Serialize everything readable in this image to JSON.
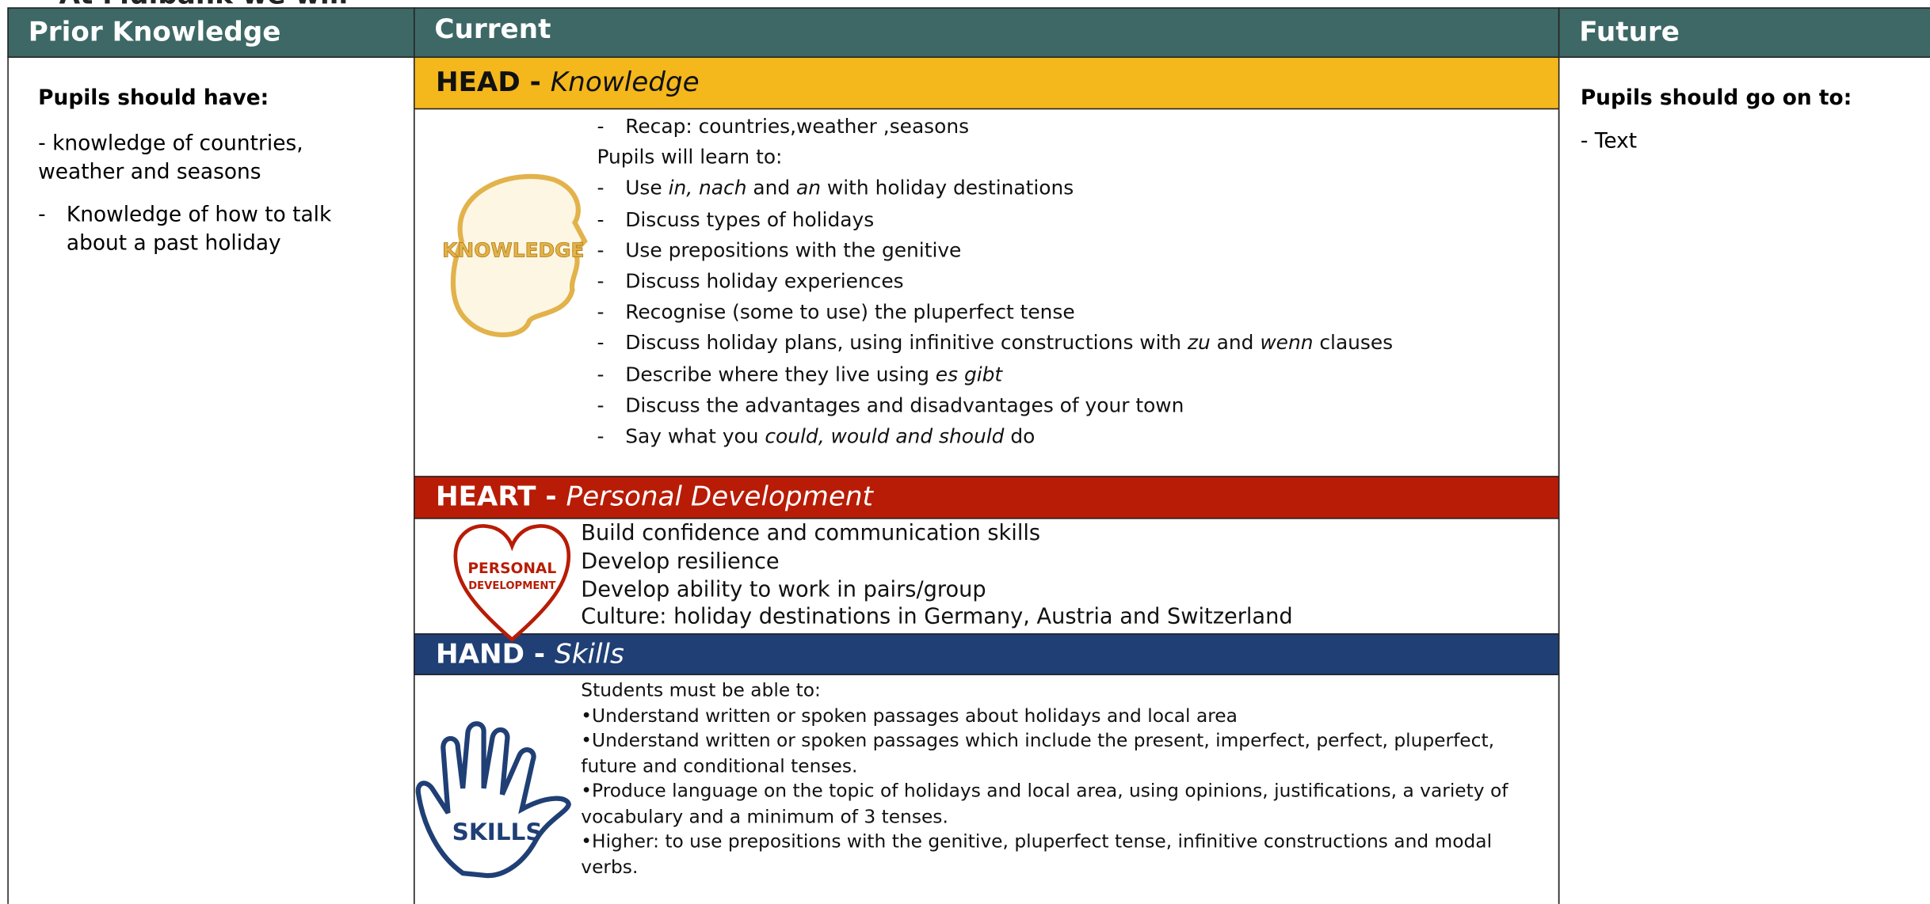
{
  "header_top": "At Mulbank we will",
  "prior": {
    "title": "Prior Knowledge",
    "heading": "Pupils should have:",
    "items": [
      "- knowledge of countries, weather and seasons"
    ],
    "bullets": [
      "Knowledge of how to talk about a past holiday"
    ]
  },
  "current": {
    "title": "Current",
    "head": {
      "label": "HEAD - ",
      "sub": "Knowledge",
      "icon": "KNOWLEDGE",
      "lines": [
        {
          "dash": true,
          "parts": [
            "Recap: countries,weather ,seasons"
          ]
        },
        {
          "dash": false,
          "parts": [
            "Pupils will learn to:"
          ]
        },
        {
          "dash": true,
          "parts": [
            "Use ",
            {
              "t": "in, nach",
              "i": true
            },
            " and ",
            {
              "t": "an",
              "i": true
            },
            " with holiday destinations"
          ]
        },
        {
          "dash": true,
          "parts": [
            "Discuss types of holidays"
          ]
        },
        {
          "dash": true,
          "parts": [
            "Use prepositions with the genitive"
          ]
        },
        {
          "dash": true,
          "parts": [
            "Discuss holiday experiences"
          ]
        },
        {
          "dash": true,
          "parts": [
            "Recognise (some to use) the pluperfect tense"
          ]
        },
        {
          "dash": true,
          "parts": [
            "Discuss holiday plans, using infinitive constructions with ",
            {
              "t": "zu",
              "i": true
            },
            " and ",
            {
              "t": "wenn",
              "i": true
            },
            " clauses"
          ]
        },
        {
          "dash": true,
          "parts": [
            "Describe where they live using ",
            {
              "t": "es gibt",
              "i": true
            }
          ]
        },
        {
          "dash": true,
          "parts": [
            "Discuss the advantages and disadvantages of your town"
          ]
        },
        {
          "dash": true,
          "parts": [
            "Say what you ",
            {
              "t": "could, would and should",
              "i": true
            },
            " do"
          ]
        }
      ]
    },
    "heart": {
      "label": "HEART - ",
      "sub": "Personal Development",
      "icon": [
        "PERSONAL",
        "DEVELOPMENT"
      ],
      "lines": [
        "Build confidence and communication skills",
        "Develop resilience",
        "Develop ability to work in pairs/group",
        "Culture: holiday destinations in Germany, Austria and Switzerland"
      ]
    },
    "hand": {
      "label": "HAND - ",
      "sub": "Skills",
      "icon": "SKILLS",
      "lines": [
        "Students must be able to:",
        "•Understand written or spoken passages about holidays and local area",
        "•Understand written or spoken passages which include the present, imperfect, perfect, pluperfect, future and conditional tenses.",
        "•Produce language on the topic of holidays and local area, using opinions, justifications, a variety of vocabulary and a minimum of 3 tenses.",
        "•Higher: to use prepositions with the genitive, pluperfect tense, infinitive constructions and modal verbs."
      ]
    }
  },
  "future": {
    "title": "Future",
    "heading": "Pupils should go on to:",
    "items": [
      "- Text"
    ]
  }
}
